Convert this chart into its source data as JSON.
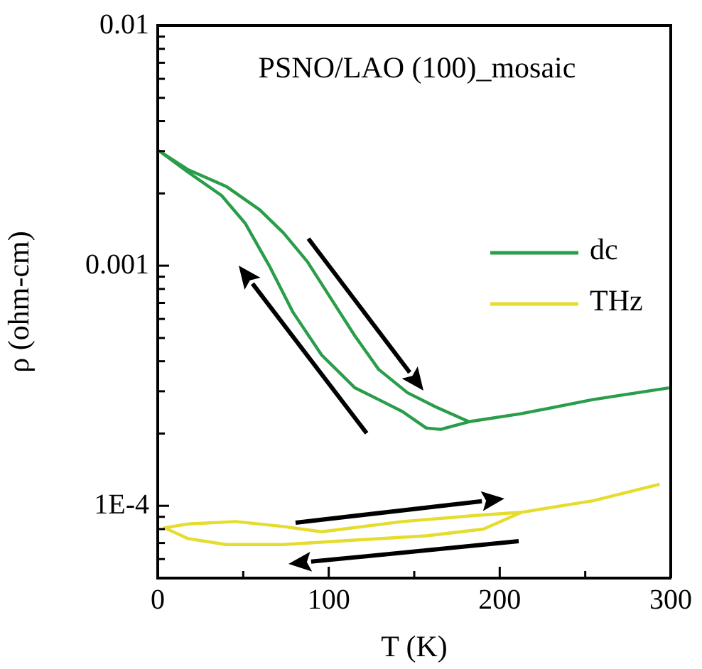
{
  "chart_data": {
    "type": "line",
    "title": "PSNO/LAO (100)_mosaic",
    "xlabel": "T (K)",
    "ylabel": "ρ (ohm-cm)",
    "log": "y",
    "grid": false,
    "legend": "right",
    "marker": "none",
    "line_style": "solid",
    "xlim": [
      0,
      300
    ],
    "xticks": [
      0,
      {
        "value": 50,
        "label": null
      },
      100,
      {
        "value": 150,
        "label": null
      },
      200,
      {
        "value": 250,
        "label": null
      },
      300
    ],
    "ylim": [
      5e-05,
      0.01
    ],
    "yticks": [
      {
        "value": 6e-05,
        "label": null
      },
      {
        "value": 7e-05,
        "label": null
      },
      {
        "value": 8e-05,
        "label": null
      },
      {
        "value": 9e-05,
        "label": null
      },
      {
        "value": 0.0001,
        "label": "1E-4"
      },
      {
        "value": 0.0002,
        "label": null
      },
      {
        "value": 0.0003,
        "label": null
      },
      {
        "value": 0.0004,
        "label": null
      },
      {
        "value": 0.0005,
        "label": null
      },
      {
        "value": 0.0006,
        "label": null
      },
      {
        "value": 0.0007,
        "label": null
      },
      {
        "value": 0.0008,
        "label": null
      },
      {
        "value": 0.0009,
        "label": null
      },
      0.001,
      {
        "value": 0.002,
        "label": null
      },
      {
        "value": 0.003,
        "label": null
      },
      {
        "value": 0.004,
        "label": null
      },
      {
        "value": 0.005,
        "label": null
      },
      {
        "value": 0.006,
        "label": null
      },
      {
        "value": 0.007,
        "label": null
      },
      {
        "value": 0.008,
        "label": null
      },
      {
        "value": 0.009,
        "label": null
      },
      0.01
    ],
    "series": [
      {
        "name": "dc",
        "color": "#2a9d4a",
        "x": [
          299,
          254.5,
          212.8,
          182,
          162.6,
          146,
          129.2,
          115.3,
          101.3,
          87.5,
          73.5,
          59.6,
          40,
          17.8,
          1,
          17.8,
          37.3,
          51.2,
          65.2,
          79.1,
          95.8,
          115.3,
          129.2,
          143.1,
          157,
          165.4,
          182
        ],
        "values": [
          0.00031,
          0.000277,
          0.000242,
          0.000224,
          0.000258,
          0.000296,
          0.00037,
          0.00051,
          0.00073,
          0.00104,
          0.00137,
          0.00171,
          0.00214,
          0.00251,
          0.003,
          0.00245,
          0.00196,
          0.0015,
          0.001,
          0.00064,
          0.000425,
          0.00031,
          0.000277,
          0.000247,
          0.000211,
          0.000208,
          0.000224
        ]
      },
      {
        "name": "THz",
        "color": "#e6dc2e",
        "x": [
          293.5,
          254.5,
          212.8,
          184.9,
          143.1,
          95.8,
          73.5,
          45.7,
          17.8,
          3.9,
          17.8,
          40,
          73.5,
          115.3,
          157,
          190.5,
          212.8
        ],
        "values": [
          0.000123,
          0.000105,
          9.4e-05,
          9.1e-05,
          8.6e-05,
          7.8e-05,
          8.2e-05,
          8.6e-05,
          8.4e-05,
          8.1e-05,
          7.3e-05,
          6.9e-05,
          6.9e-05,
          7.2e-05,
          7.5e-05,
          8e-05,
          9.4e-05
        ]
      }
    ]
  }
}
